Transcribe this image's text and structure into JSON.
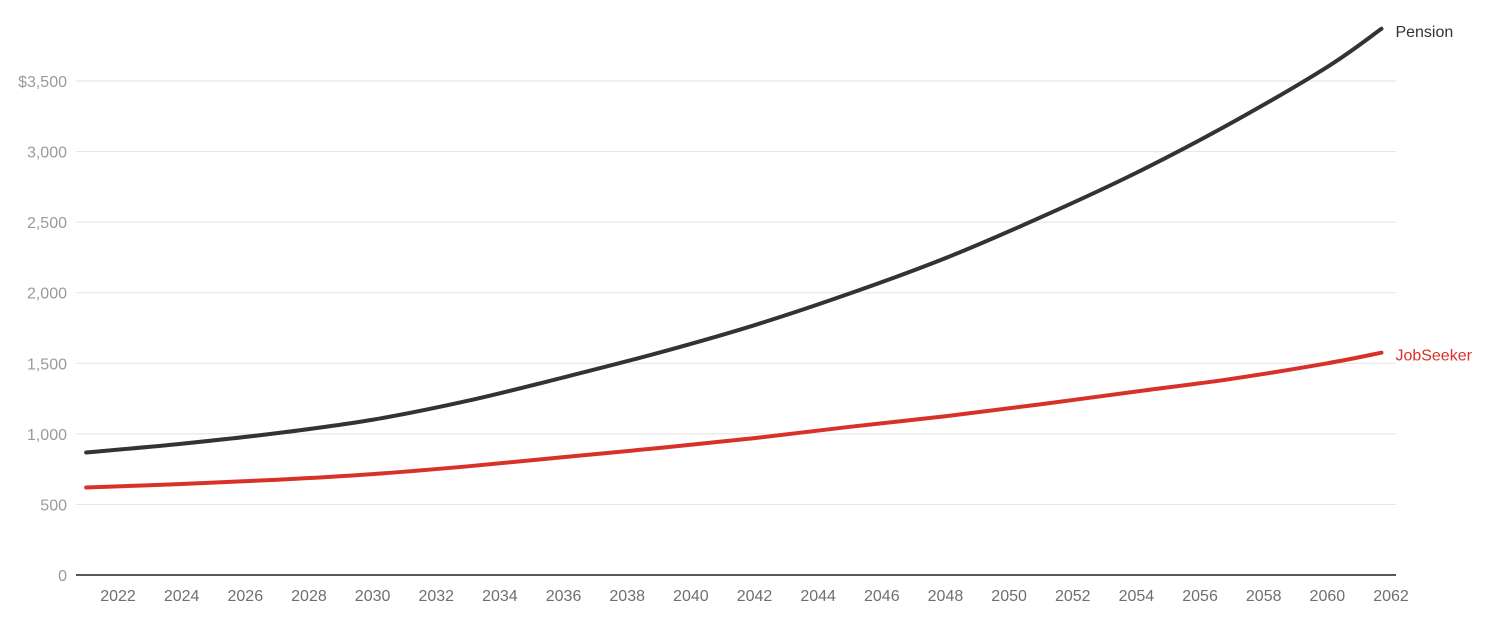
{
  "chart_data": {
    "type": "line",
    "title": "",
    "xlabel": "",
    "ylabel": "",
    "xlim": [
      2021,
      2061.7
    ],
    "ylim": [
      0,
      3500
    ],
    "y_ticks": [
      0,
      500,
      1000,
      1500,
      2000,
      2500,
      3000,
      3500
    ],
    "y_tick_labels": [
      "0",
      "500",
      "1,000",
      "1,500",
      "2,000",
      "2,500",
      "3,000",
      "$3,500"
    ],
    "x_ticks": [
      2022,
      2024,
      2026,
      2028,
      2030,
      2032,
      2034,
      2036,
      2038,
      2040,
      2042,
      2044,
      2046,
      2048,
      2050,
      2052,
      2054,
      2056,
      2058,
      2060,
      2062
    ],
    "x_tick_labels": [
      "2022",
      "2024",
      "2026",
      "2028",
      "2030",
      "2032",
      "2034",
      "2036",
      "2038",
      "2040",
      "2042",
      "2044",
      "2046",
      "2048",
      "2050",
      "2052",
      "2054",
      "2056",
      "2058",
      "2060",
      "2062"
    ],
    "grid": true,
    "legend": "direct labels at line ends",
    "series": [
      {
        "name": "Pension",
        "color": "#333333",
        "x": [
          2021,
          2024,
          2027,
          2030,
          2033,
          2036,
          2039,
          2042,
          2045,
          2048,
          2051,
          2054,
          2057,
          2060,
          2061.7
        ],
        "values": [
          868,
          930,
          1005,
          1100,
          1235,
          1400,
          1575,
          1770,
          1995,
          2245,
          2535,
          2850,
          3205,
          3600,
          3870
        ]
      },
      {
        "name": "JobSeeker",
        "color": "#d7312a",
        "x": [
          2021,
          2024,
          2027,
          2030,
          2033,
          2036,
          2039,
          2042,
          2045,
          2048,
          2051,
          2054,
          2057,
          2060,
          2061.7
        ],
        "values": [
          620,
          645,
          675,
          715,
          770,
          835,
          900,
          970,
          1050,
          1125,
          1210,
          1300,
          1390,
          1500,
          1575
        ]
      }
    ]
  }
}
